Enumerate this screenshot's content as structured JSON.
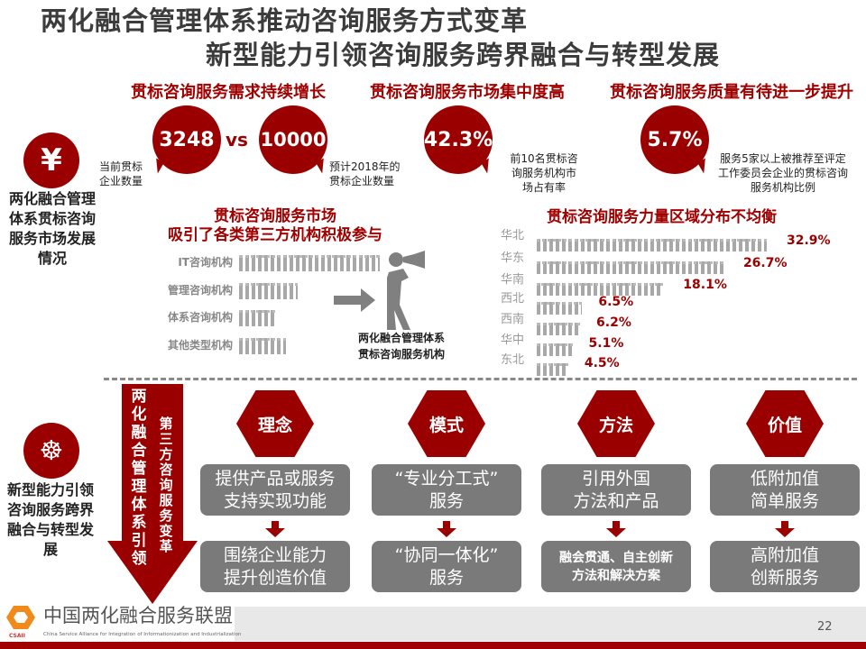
{
  "title": {
    "line1": "两化融合管理体系推动咨询服务方式变革",
    "line2": "新型能力引领咨询服务跨界融合与转型发展"
  },
  "colors": {
    "accent": "#9b0000",
    "gray_box": "#7a7a7a",
    "text": "#3c3c3c"
  },
  "section_market": {
    "icon": "yen-icon",
    "label": "两化融合管理体系贯标咨询服务市场发展情况",
    "demand": {
      "heading": "贯标咨询服务需求持续增长",
      "current_value": "3248",
      "current_caption": "当前贯标企业数量",
      "vs": "vs",
      "forecast_value": "10000",
      "forecast_caption": "预计2018年的贯标企业数量"
    },
    "concentration": {
      "heading": "贯标咨询服务市场集中度高",
      "value": "42.3%",
      "caption": "前10名贯标咨询服务机构市场占有率"
    },
    "quality": {
      "heading": "贯标咨询服务质量有待进一步提升",
      "value": "5.7%",
      "caption": "服务5家以上被推荐至评定工作委员会企业的贯标咨询服务机构比例"
    },
    "third_party": {
      "heading_line1": "贯标咨询服务市场",
      "heading_line2": "吸引了各类第三方机构积极参与",
      "rows": [
        {
          "label": "IT咨询机构"
        },
        {
          "label": "管理咨询机构"
        },
        {
          "label": "体系咨询机构"
        },
        {
          "label": "其他类型机构"
        }
      ],
      "target_caption_line1": "两化融合管理体系",
      "target_caption_line2": "贯标咨询服务机构"
    }
  },
  "chart_data": {
    "type": "bar",
    "title": "贯标咨询服务力量区域分布不均衡",
    "categories": [
      "华北",
      "华东",
      "华南",
      "西北",
      "西南",
      "华中",
      "东北"
    ],
    "values": [
      32.9,
      26.7,
      18.1,
      6.5,
      6.2,
      5.1,
      4.5
    ],
    "value_labels": [
      "32.9%",
      "26.7%",
      "18.1%",
      "6.5%",
      "6.2%",
      "5.1%",
      "4.5%"
    ],
    "orientation": "horizontal",
    "unit": "%"
  },
  "section_transform": {
    "icon": "helm-wheel-icon",
    "label": "新型能力引领咨询服务跨界融合与转型发展",
    "arrow_text_col1": "两化融合管理体系引领",
    "arrow_text_col2": "第三方咨询服务变革",
    "columns": [
      {
        "hex": "理念",
        "from": "提供产品或服务支持实现功能",
        "from_l1": "提供产品或服务",
        "from_l2": "支持实现功能",
        "to_l1": "围绕企业能力",
        "to_l2": "提升创造价值"
      },
      {
        "hex": "模式",
        "from_l1": "“专业分工式”",
        "from_l2": "服务",
        "to_l1": "“协同一体化”",
        "to_l2": "服务"
      },
      {
        "hex": "方法",
        "from_l1": "引用外国",
        "from_l2": "方法和产品",
        "to_l1": "融会贯通、自主创新",
        "to_l2": "方法和解决方案"
      },
      {
        "hex": "价值",
        "from_l1": "低附加值",
        "from_l2": "简单服务",
        "to_l1": "高附加值",
        "to_l2": "创新服务"
      }
    ]
  },
  "footer": {
    "org_name": "中国两化融合服务联盟",
    "org_name_en": "China Service Alliance for Integration of Informationization and Industrialization",
    "logo_text": "CSAII",
    "page_number": "22"
  }
}
